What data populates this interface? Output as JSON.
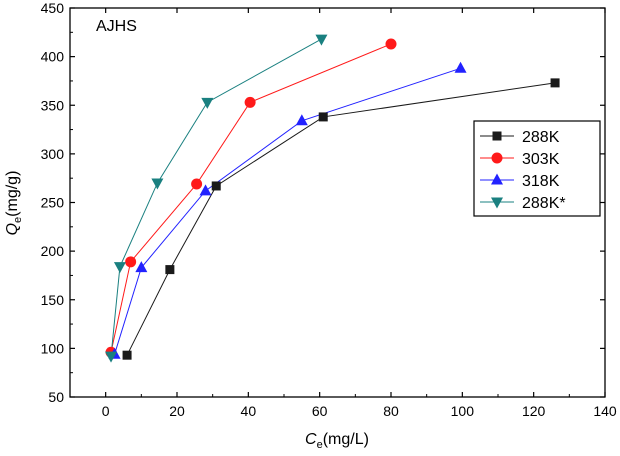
{
  "chart_data": {
    "type": "line",
    "annotation": "AJHS",
    "xlabel": {
      "main": "C",
      "sub": "e",
      "unit": "(mg/L)"
    },
    "ylabel": {
      "main": "Q",
      "sub": "e",
      "unit": "(mg/g)"
    },
    "xlim": [
      -10,
      140
    ],
    "ylim": [
      50,
      450
    ],
    "xticks": [
      0,
      20,
      40,
      60,
      80,
      100,
      120,
      140
    ],
    "yticks": [
      50,
      100,
      150,
      200,
      250,
      300,
      350,
      400,
      450
    ],
    "legend_position": "right",
    "series": [
      {
        "name": "288K",
        "color": "#1a1a1a",
        "marker": "square",
        "points": [
          [
            6,
            93
          ],
          [
            18,
            181
          ],
          [
            31,
            267
          ],
          [
            61,
            338
          ],
          [
            126,
            373
          ]
        ]
      },
      {
        "name": "303K",
        "color": "#ff1a1a",
        "marker": "circle",
        "points": [
          [
            1.5,
            96
          ],
          [
            7,
            189
          ],
          [
            25.5,
            269
          ],
          [
            40.5,
            353
          ],
          [
            80,
            413
          ]
        ]
      },
      {
        "name": "318K",
        "color": "#2222ff",
        "marker": "triangle-up",
        "points": [
          [
            2.5,
            94
          ],
          [
            10,
            183
          ],
          [
            28,
            262
          ],
          [
            55,
            334
          ],
          [
            99.5,
            388
          ]
        ]
      },
      {
        "name": "288K*",
        "color": "#1a8080",
        "marker": "triangle-down",
        "points": [
          [
            1.5,
            92
          ],
          [
            4,
            184
          ],
          [
            14.5,
            270
          ],
          [
            28.5,
            353
          ],
          [
            60.5,
            418
          ]
        ]
      }
    ]
  }
}
